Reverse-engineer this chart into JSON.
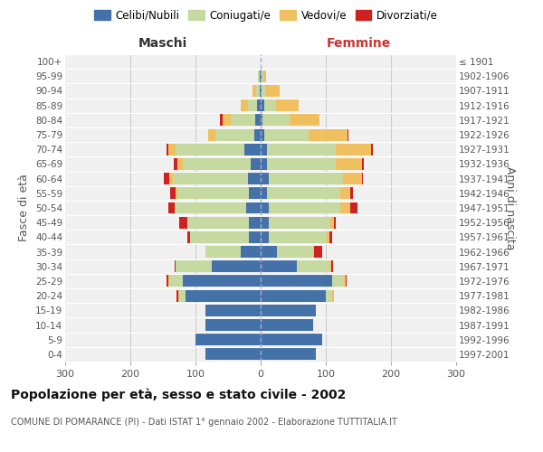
{
  "age_groups": [
    "0-4",
    "5-9",
    "10-14",
    "15-19",
    "20-24",
    "25-29",
    "30-34",
    "35-39",
    "40-44",
    "45-49",
    "50-54",
    "55-59",
    "60-64",
    "65-69",
    "70-74",
    "75-79",
    "80-84",
    "85-89",
    "90-94",
    "95-99",
    "100+"
  ],
  "birth_years": [
    "1997-2001",
    "1992-1996",
    "1987-1991",
    "1982-1986",
    "1977-1981",
    "1972-1976",
    "1967-1971",
    "1962-1966",
    "1957-1961",
    "1952-1956",
    "1947-1951",
    "1942-1946",
    "1937-1941",
    "1932-1936",
    "1927-1931",
    "1922-1926",
    "1917-1921",
    "1912-1916",
    "1907-1911",
    "1902-1906",
    "≤ 1901"
  ],
  "maschi": {
    "celibi": [
      85,
      100,
      85,
      85,
      115,
      120,
      75,
      30,
      18,
      18,
      22,
      18,
      20,
      15,
      25,
      10,
      8,
      5,
      2,
      2,
      0
    ],
    "coniugati": [
      0,
      0,
      0,
      0,
      10,
      20,
      55,
      55,
      90,
      95,
      108,
      110,
      115,
      105,
      105,
      60,
      38,
      15,
      5,
      2,
      0
    ],
    "vedovi": [
      0,
      0,
      0,
      0,
      2,
      2,
      0,
      0,
      0,
      0,
      2,
      3,
      5,
      8,
      12,
      10,
      12,
      10,
      5,
      0,
      0
    ],
    "divorziati": [
      0,
      0,
      0,
      0,
      2,
      2,
      2,
      0,
      5,
      12,
      10,
      8,
      8,
      5,
      2,
      0,
      5,
      0,
      0,
      0,
      0
    ]
  },
  "femmine": {
    "nubili": [
      85,
      95,
      80,
      85,
      100,
      110,
      55,
      25,
      12,
      12,
      12,
      10,
      12,
      10,
      10,
      5,
      3,
      5,
      2,
      2,
      0
    ],
    "coniugate": [
      0,
      0,
      0,
      0,
      10,
      18,
      52,
      55,
      90,
      95,
      110,
      112,
      115,
      105,
      105,
      68,
      42,
      18,
      5,
      2,
      0
    ],
    "vedove": [
      0,
      0,
      0,
      0,
      2,
      2,
      2,
      2,
      3,
      5,
      15,
      15,
      28,
      40,
      55,
      60,
      45,
      35,
      22,
      5,
      0
    ],
    "divorziate": [
      0,
      0,
      0,
      0,
      0,
      2,
      2,
      12,
      5,
      3,
      12,
      5,
      2,
      3,
      2,
      2,
      0,
      0,
      0,
      0,
      0
    ]
  },
  "colors": {
    "celibi": "#4472a8",
    "coniugati": "#c5d9a0",
    "vedovi": "#f0c060",
    "divorziati": "#cc2222"
  },
  "xlim": 300,
  "title": "Popolazione per età, sesso e stato civile - 2002",
  "subtitle": "COMUNE DI POMARANCE (PI) - Dati ISTAT 1° gennaio 2002 - Elaborazione TUTTITALIA.IT",
  "ylabel_left": "Fasce di età",
  "ylabel_right": "Anni di nascita",
  "xlabel_maschi": "Maschi",
  "xlabel_femmine": "Femmine",
  "legend_labels": [
    "Celibi/Nubili",
    "Coniugati/e",
    "Vedovi/e",
    "Divorziati/e"
  ],
  "bg_color": "#f0f0f0",
  "grid_color": "#cccccc"
}
